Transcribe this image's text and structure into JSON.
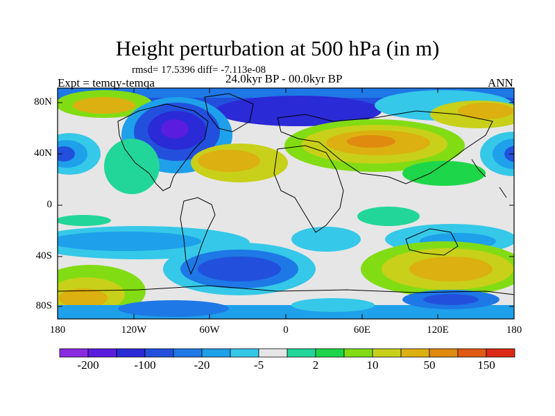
{
  "title": "Height perturbation at 500 hPa (in m)",
  "stats_text": "rmsd= 17.5396 diff= -7.113e-08",
  "experiment_text": "Expt = temqy-temqa",
  "period_text": "24.0kyr BP - 00.0kyr BP",
  "season_text": "ANN",
  "axes": {
    "lat_ticks": [
      "80N",
      "40N",
      "0",
      "40S",
      "80S"
    ],
    "lon_ticks": [
      "180",
      "120W",
      "60W",
      "0",
      "60E",
      "120E",
      "180"
    ]
  },
  "colorbar": {
    "colors": [
      "#8a2be2",
      "#5a1de0",
      "#2a2ad6",
      "#2250dd",
      "#1e78e6",
      "#1ea0ea",
      "#35c8e8",
      "#e6e6e6",
      "#22d69a",
      "#1ed64a",
      "#82dc14",
      "#c8d01a",
      "#dcb010",
      "#e08a10",
      "#e05a14",
      "#dc2a14"
    ],
    "labels": [
      "-200",
      "-100",
      "-20",
      "-5",
      "2",
      "10",
      "50",
      "150"
    ]
  },
  "colors": {
    "land_outline": "#000000",
    "background": "#e6e6e6"
  }
}
